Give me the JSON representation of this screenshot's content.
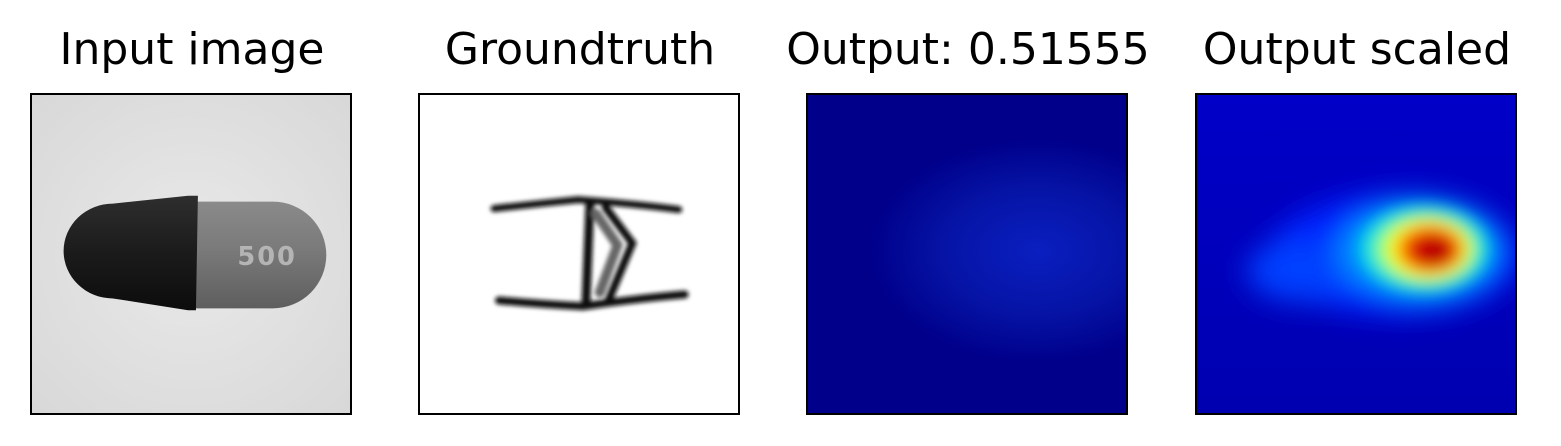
{
  "panels": [
    {
      "title": "Input image",
      "image": "grayscale capsule photo"
    },
    {
      "title": "Groundtruth",
      "image": "defect mask"
    },
    {
      "title": "Output: 0.51555",
      "image": "jet colormap heatmap (raw)"
    },
    {
      "title": "Output scaled",
      "image": "jet colormap heatmap (scaled)"
    }
  ],
  "colors": {
    "jet_low": "#00008b",
    "jet_high": "#b40000",
    "frame": "#000000"
  }
}
